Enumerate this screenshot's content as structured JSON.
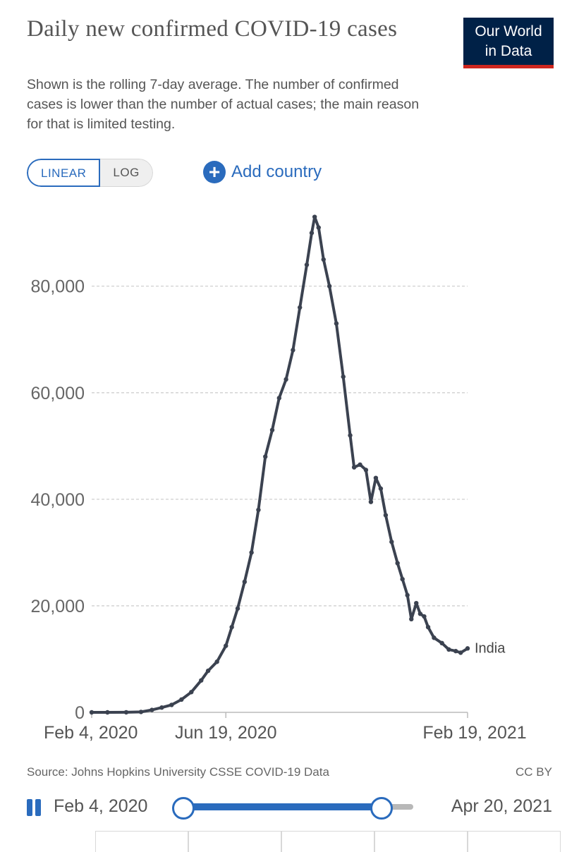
{
  "header": {
    "title": "Daily new confirmed COVID-19 cases",
    "subtitle": "Shown is the rolling 7-day average. The number of confirmed cases is lower than the number of actual cases; the main reason for that is limited testing.",
    "logo_line1": "Our World",
    "logo_line2": "in Data"
  },
  "controls": {
    "linear_label": "LINEAR",
    "log_label": "LOG",
    "add_country_label": "Add country"
  },
  "colors": {
    "accent": "#2a6bbd",
    "line": "#3b4250",
    "logo_bg": "#002147",
    "logo_stripe": "#ce261e"
  },
  "chart_data": {
    "type": "line",
    "title": "Daily new confirmed COVID-19 cases",
    "xlabel": "",
    "ylabel": "",
    "x_ticks": [
      "Feb 4, 2020",
      "Jun 19, 2020",
      "Feb 19, 2021"
    ],
    "y_ticks": [
      0,
      20000,
      40000,
      60000,
      80000
    ],
    "y_tick_labels": [
      "0",
      "20,000",
      "40,000",
      "60,000",
      "80,000"
    ],
    "xlim": [
      "2020-02-04",
      "2021-02-19"
    ],
    "ylim": [
      0,
      94000
    ],
    "grid": "horizontal-dashed",
    "series": [
      {
        "name": "India",
        "points": [
          [
            "2020-02-04",
            0
          ],
          [
            "2020-02-20",
            0
          ],
          [
            "2020-03-10",
            10
          ],
          [
            "2020-03-25",
            80
          ],
          [
            "2020-04-05",
            450
          ],
          [
            "2020-04-15",
            900
          ],
          [
            "2020-04-25",
            1400
          ],
          [
            "2020-05-05",
            2400
          ],
          [
            "2020-05-15",
            3800
          ],
          [
            "2020-05-25",
            6000
          ],
          [
            "2020-06-01",
            7800
          ],
          [
            "2020-06-10",
            9500
          ],
          [
            "2020-06-19",
            12500
          ],
          [
            "2020-06-25",
            16000
          ],
          [
            "2020-07-01",
            19500
          ],
          [
            "2020-07-08",
            24500
          ],
          [
            "2020-07-15",
            30000
          ],
          [
            "2020-07-22",
            38000
          ],
          [
            "2020-07-29",
            48000
          ],
          [
            "2020-08-05",
            53000
          ],
          [
            "2020-08-12",
            59000
          ],
          [
            "2020-08-19",
            62500
          ],
          [
            "2020-08-26",
            68000
          ],
          [
            "2020-09-02",
            76000
          ],
          [
            "2020-09-09",
            84000
          ],
          [
            "2020-09-14",
            90000
          ],
          [
            "2020-09-17",
            93000
          ],
          [
            "2020-09-21",
            91000
          ],
          [
            "2020-09-26",
            85000
          ],
          [
            "2020-10-02",
            80000
          ],
          [
            "2020-10-09",
            73000
          ],
          [
            "2020-10-16",
            63000
          ],
          [
            "2020-10-23",
            52000
          ],
          [
            "2020-10-27",
            46000
          ],
          [
            "2020-11-02",
            46500
          ],
          [
            "2020-11-08",
            45500
          ],
          [
            "2020-11-13",
            39500
          ],
          [
            "2020-11-18",
            44000
          ],
          [
            "2020-11-23",
            42000
          ],
          [
            "2020-11-28",
            37000
          ],
          [
            "2020-12-04",
            32000
          ],
          [
            "2020-12-10",
            28000
          ],
          [
            "2020-12-15",
            25000
          ],
          [
            "2020-12-20",
            22000
          ],
          [
            "2020-12-24",
            17500
          ],
          [
            "2020-12-29",
            20500
          ],
          [
            "2021-01-02",
            18500
          ],
          [
            "2021-01-06",
            18000
          ],
          [
            "2021-01-10",
            16000
          ],
          [
            "2021-01-16",
            14000
          ],
          [
            "2021-01-24",
            13000
          ],
          [
            "2021-01-31",
            11800
          ],
          [
            "2021-02-07",
            11500
          ],
          [
            "2021-02-12",
            11200
          ],
          [
            "2021-02-19",
            12000
          ]
        ]
      }
    ],
    "end_label": "India"
  },
  "footer": {
    "source": "Source: Johns Hopkins University CSSE COVID-19 Data",
    "license": "CC BY"
  },
  "timeline": {
    "start_label": "Feb 4, 2020",
    "end_label": "Apr 20, 2021",
    "selection_start": "2020-02-04",
    "selection_end": "2021-02-19",
    "range_start": "2020-02-04",
    "range_end": "2021-04-20"
  }
}
